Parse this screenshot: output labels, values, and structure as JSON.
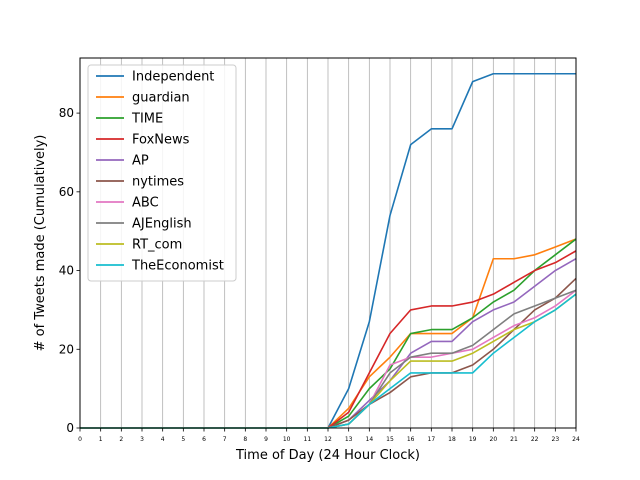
{
  "chart_data": {
    "type": "line",
    "title": "",
    "xlabel": "Time of Day (24 Hour Clock)",
    "ylabel": "# of Tweets made (Cumulatively)",
    "xlim": [
      0,
      24
    ],
    "ylim": [
      0,
      94
    ],
    "x": [
      0,
      1,
      2,
      3,
      4,
      5,
      6,
      7,
      8,
      9,
      10,
      11,
      12,
      13,
      14,
      15,
      16,
      17,
      18,
      19,
      20,
      21,
      22,
      23,
      24
    ],
    "x_ticks": [
      "0",
      "1",
      "2",
      "3",
      "4",
      "5",
      "6",
      "7",
      "8",
      "9",
      "10",
      "11",
      "12",
      "13",
      "14",
      "15",
      "16",
      "17",
      "18",
      "19",
      "20",
      "21",
      "22",
      "23",
      "24"
    ],
    "y_ticks": [
      0,
      20,
      40,
      60,
      80
    ],
    "grid": "vertical",
    "legend_position": "top-left",
    "series": [
      {
        "name": "Independent",
        "color": "#1f77b4",
        "values": [
          0,
          0,
          0,
          0,
          0,
          0,
          0,
          0,
          0,
          0,
          0,
          0,
          0,
          10,
          27,
          54,
          72,
          76,
          76,
          88,
          90,
          90,
          90,
          90,
          90
        ]
      },
      {
        "name": "guardian",
        "color": "#ff7f0e",
        "values": [
          0,
          0,
          0,
          0,
          0,
          0,
          0,
          0,
          0,
          0,
          0,
          0,
          0,
          5,
          13,
          18,
          24,
          24,
          24,
          28,
          43,
          43,
          44,
          46,
          48
        ]
      },
      {
        "name": "TIME",
        "color": "#2ca02c",
        "values": [
          0,
          0,
          0,
          0,
          0,
          0,
          0,
          0,
          0,
          0,
          0,
          0,
          0,
          3,
          10,
          15,
          24,
          25,
          25,
          28,
          32,
          35,
          40,
          44,
          48
        ]
      },
      {
        "name": "FoxNews",
        "color": "#d62728",
        "values": [
          0,
          0,
          0,
          0,
          0,
          0,
          0,
          0,
          0,
          0,
          0,
          0,
          0,
          4,
          14,
          24,
          30,
          31,
          31,
          32,
          34,
          37,
          40,
          42,
          45
        ]
      },
      {
        "name": "AP",
        "color": "#9467bd",
        "values": [
          0,
          0,
          0,
          0,
          0,
          0,
          0,
          0,
          0,
          0,
          0,
          0,
          0,
          2,
          7,
          12,
          19,
          22,
          22,
          27,
          30,
          32,
          36,
          40,
          43
        ]
      },
      {
        "name": "nytimes",
        "color": "#8c564b",
        "values": [
          0,
          0,
          0,
          0,
          0,
          0,
          0,
          0,
          0,
          0,
          0,
          0,
          0,
          2,
          6,
          9,
          13,
          14,
          14,
          16,
          20,
          25,
          30,
          33,
          38
        ]
      },
      {
        "name": "ABC",
        "color": "#e377c2",
        "values": [
          0,
          0,
          0,
          0,
          0,
          0,
          0,
          0,
          0,
          0,
          0,
          0,
          0,
          1,
          6,
          16,
          18,
          18,
          19,
          20,
          23,
          26,
          28,
          31,
          35
        ]
      },
      {
        "name": "AJEnglish",
        "color": "#7f7f7f",
        "values": [
          0,
          0,
          0,
          0,
          0,
          0,
          0,
          0,
          0,
          0,
          0,
          0,
          0,
          1,
          6,
          14,
          18,
          19,
          19,
          21,
          25,
          29,
          31,
          33,
          35
        ]
      },
      {
        "name": "RT_com",
        "color": "#bcbd22",
        "values": [
          0,
          0,
          0,
          0,
          0,
          0,
          0,
          0,
          0,
          0,
          0,
          0,
          0,
          1,
          6,
          12,
          17,
          17,
          17,
          19,
          22,
          25,
          27,
          30,
          34
        ]
      },
      {
        "name": "TheEconomist",
        "color": "#17becf",
        "values": [
          0,
          0,
          0,
          0,
          0,
          0,
          0,
          0,
          0,
          0,
          0,
          0,
          0,
          1,
          6,
          10,
          14,
          14,
          14,
          14,
          19,
          23,
          27,
          30,
          34
        ]
      }
    ]
  }
}
